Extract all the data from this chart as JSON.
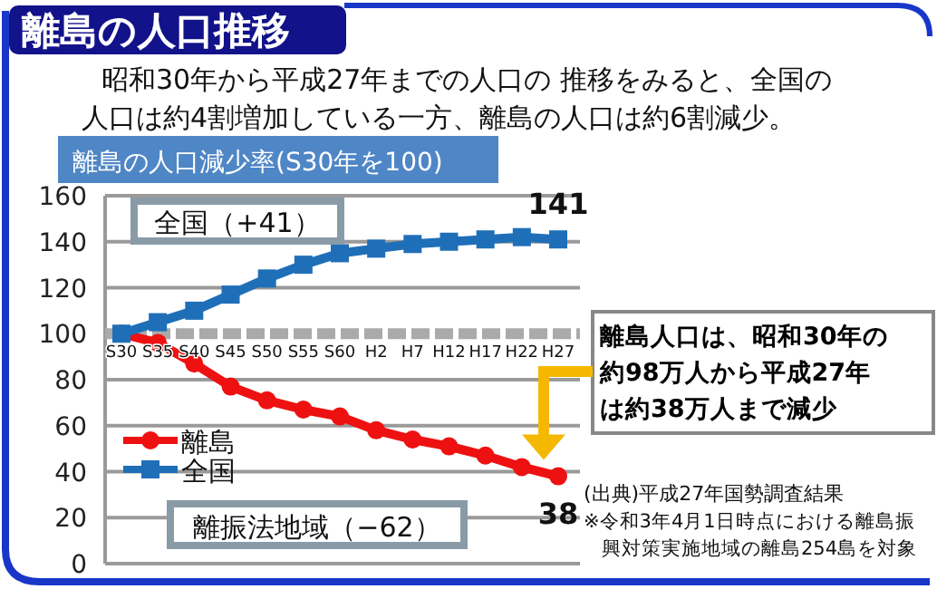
{
  "chart_data": {
    "type": "line",
    "title": "離島の人口推移",
    "subtitle": "昭和30年から平成27年までの人口の 推移をみると、全国の人口は約4割増加している一方、離島の人口は約6割減少。",
    "ylabel": "離島の人口減少率(S30年を100)",
    "categories": [
      "S30",
      "S35",
      "S40",
      "S45",
      "S50",
      "S55",
      "S60",
      "H2",
      "H7",
      "H12",
      "H17",
      "H22",
      "H27"
    ],
    "series": [
      {
        "name": "離島",
        "color": "#ee1111",
        "marker": "circle",
        "values": [
          100,
          96,
          87,
          77,
          71,
          67,
          64,
          58,
          54,
          51,
          47,
          42,
          38
        ],
        "value_labels": [
          null,
          null,
          null,
          null,
          null,
          null,
          null,
          null,
          null,
          null,
          null,
          null,
          "38"
        ]
      },
      {
        "name": "全国",
        "color": "#1f6fb8",
        "marker": "square",
        "values": [
          100,
          105,
          110,
          117,
          124,
          130,
          135,
          137,
          139,
          140,
          141,
          142,
          141
        ],
        "value_labels": [
          null,
          null,
          null,
          null,
          null,
          null,
          null,
          null,
          null,
          null,
          null,
          null,
          "141"
        ]
      }
    ],
    "ylim": [
      0,
      160
    ],
    "yticks": [
      0,
      20,
      40,
      60,
      80,
      100,
      120,
      140,
      160
    ],
    "grid": "y",
    "legend": "bottom left",
    "ref_lines": [
      {
        "axis": "y",
        "value": 100,
        "color": "#aaaaaa",
        "line_style": "dashed"
      }
    ],
    "annotations": [
      "全国（+41）",
      "離振法地域（−62）",
      "離島人口は、昭和30年の約98万人から平成27年は約38万人まで減少",
      "(出典)平成27年国勢調査結果",
      "※令和3年4月1日時点における離島振興対策実施地域の離島254島を対象"
    ]
  }
}
